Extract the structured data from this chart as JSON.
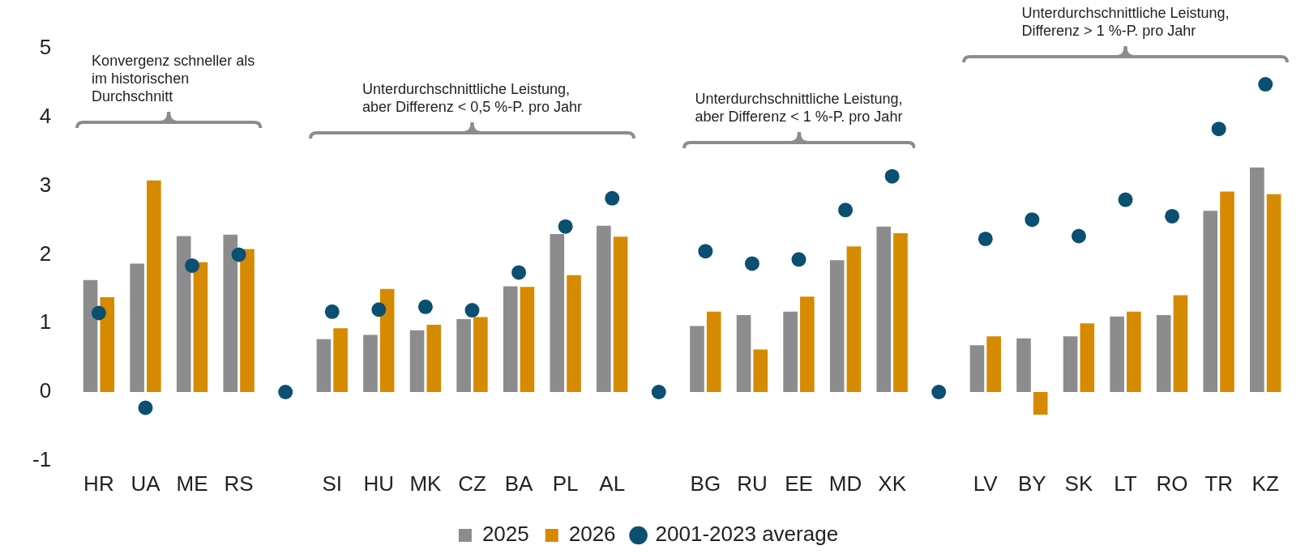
{
  "chart_data": {
    "type": "bar",
    "categories": [
      "HR",
      "UA",
      "ME",
      "RS",
      null,
      "SI",
      "HU",
      "MK",
      "CZ",
      "BA",
      "PL",
      "AL",
      null,
      "BG",
      "RU",
      "EE",
      "MD",
      "XK",
      null,
      "LV",
      "BY",
      "SK",
      "LT",
      "RO",
      "TR",
      "KZ"
    ],
    "series": [
      {
        "name": "2025",
        "color": "#8c8c8e",
        "values": [
          1.63,
          1.87,
          2.27,
          2.29,
          null,
          0.77,
          0.83,
          0.9,
          1.06,
          1.54,
          2.3,
          2.42,
          null,
          0.96,
          1.12,
          1.17,
          1.92,
          2.41,
          null,
          0.68,
          0.78,
          0.81,
          1.1,
          1.12,
          2.64,
          3.27
        ]
      },
      {
        "name": "2026",
        "color": "#d68a00",
        "values": [
          1.38,
          3.08,
          1.89,
          2.08,
          null,
          0.93,
          1.5,
          0.98,
          1.09,
          1.53,
          1.7,
          2.26,
          null,
          1.17,
          0.62,
          1.39,
          2.12,
          2.31,
          null,
          0.81,
          -0.33,
          1.0,
          1.17,
          1.41,
          2.92,
          2.88
        ]
      },
      {
        "name": "2001-2023 average",
        "type": "scatter",
        "marker": "circle",
        "color": "#0b4f71",
        "values": [
          1.15,
          -0.23,
          1.84,
          2.0,
          0,
          1.17,
          1.2,
          1.24,
          1.19,
          1.74,
          2.41,
          2.82,
          0,
          2.05,
          1.87,
          1.93,
          2.65,
          3.14,
          0,
          2.23,
          2.51,
          2.27,
          2.8,
          2.56,
          3.83,
          4.48
        ]
      }
    ],
    "ylim": [
      -1,
      5
    ],
    "yticks": [
      -1,
      0,
      1,
      2,
      3,
      4,
      5
    ],
    "grid": false,
    "legend": "bottom",
    "annotations": [
      "Konvergenz schneller als\nim historischen\nDurchschnitt",
      "Unterdurchschnittliche Leistung,\naber Differenz < 0,5 %-P. pro Jahr",
      "Unterdurchschnittliche Leistung,\naber Differenz < 1 %-P. pro Jahr",
      "Unterdurchschnittliche Leistung,\nDifferenz > 1 %-P. pro Jahr"
    ]
  }
}
